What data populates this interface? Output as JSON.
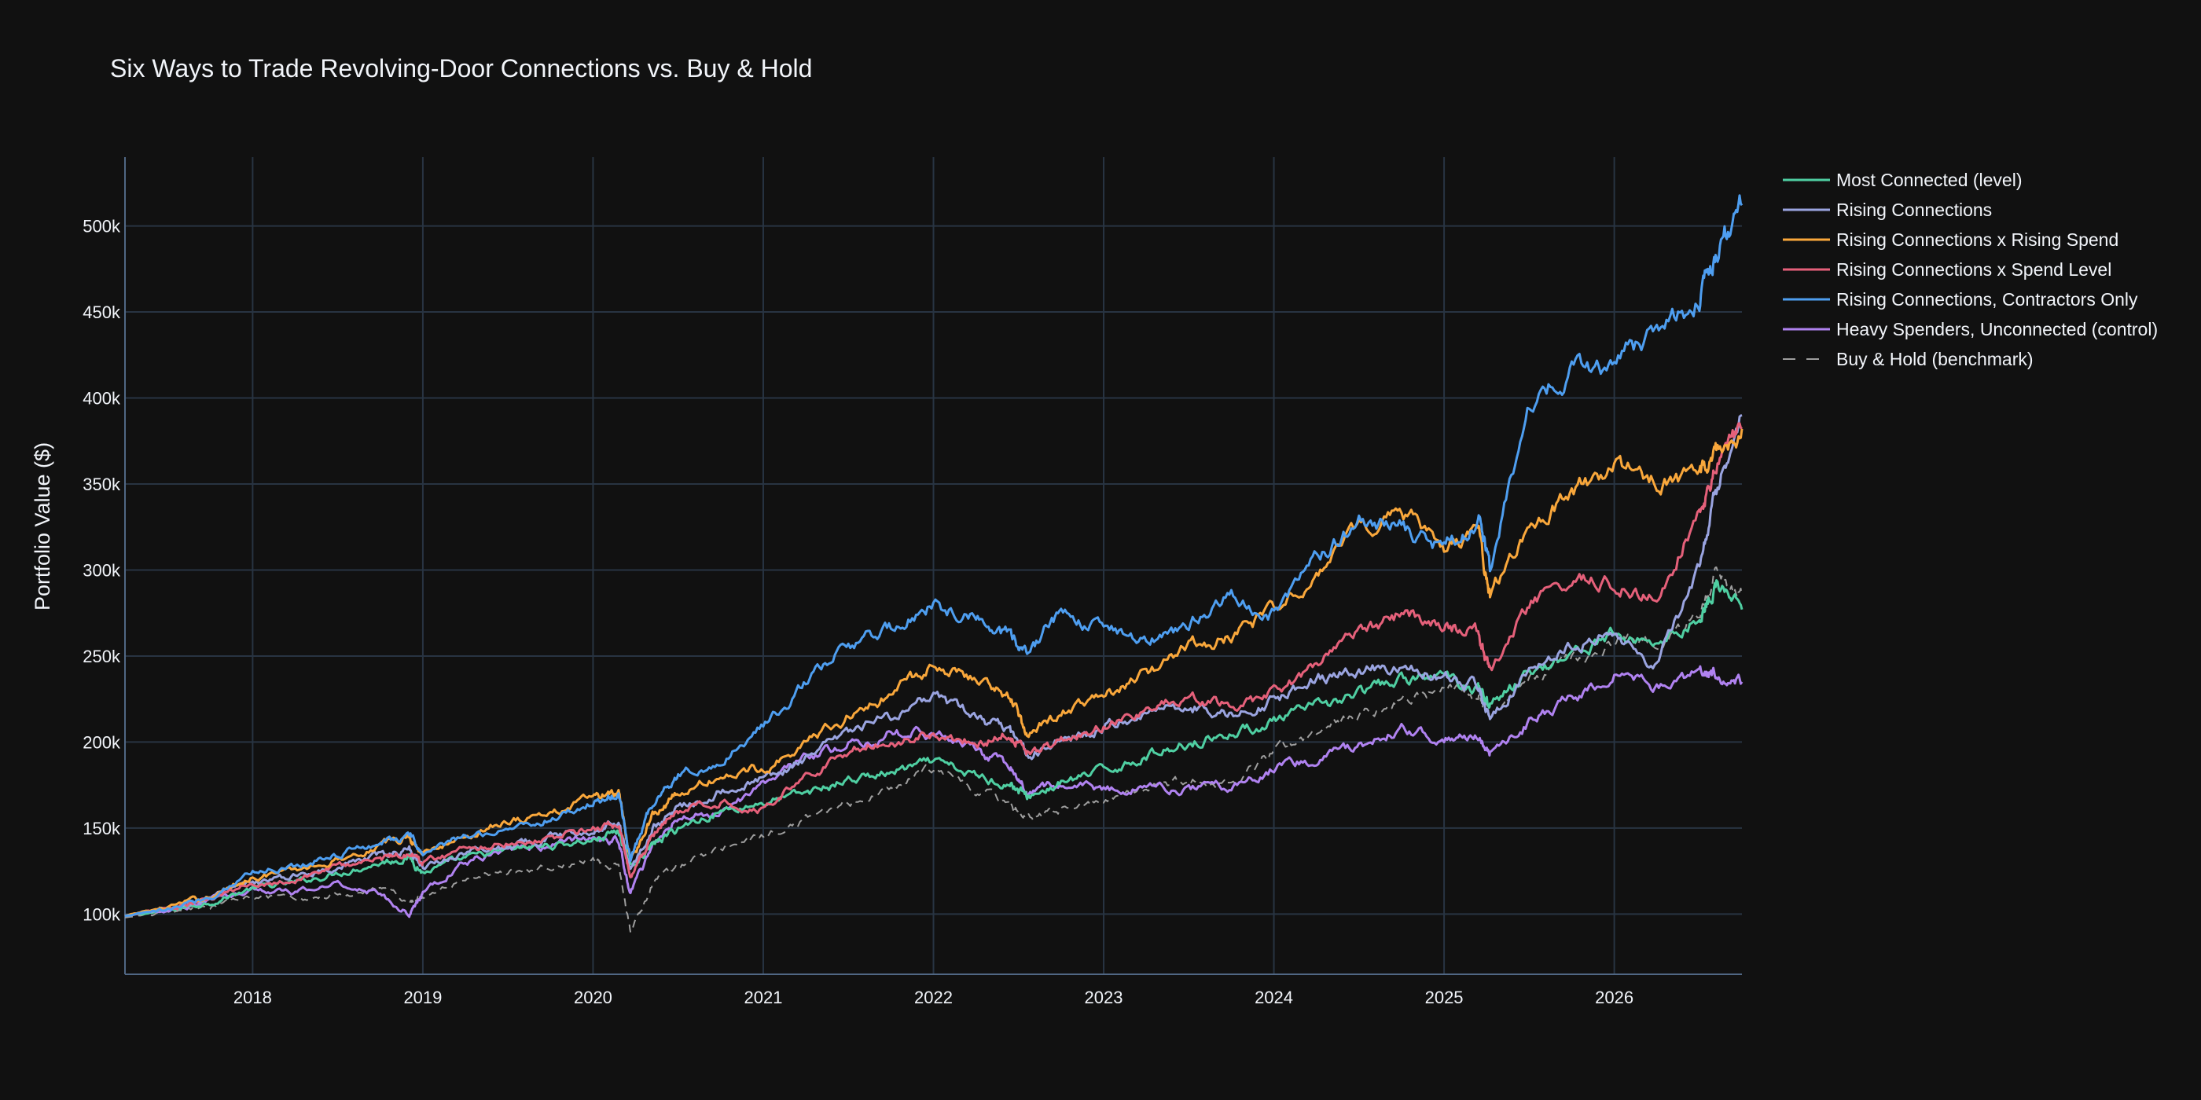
{
  "chart_data": {
    "type": "line",
    "title": "Six Ways to Trade Revolving-Door Connections vs. Buy & Hold",
    "xlabel": "",
    "ylabel": "Portfolio Value ($)",
    "xlim": [
      2017.25,
      2026.75
    ],
    "ylim": [
      65000,
      540000
    ],
    "x_ticks": [
      "2018",
      "2019",
      "2020",
      "2021",
      "2022",
      "2023",
      "2024",
      "2025",
      "2026"
    ],
    "y_ticks": [
      "100k",
      "150k",
      "200k",
      "250k",
      "300k",
      "350k",
      "400k",
      "450k",
      "500k"
    ],
    "grid": true,
    "legend_position": "right",
    "background": "#111111",
    "grid_color": "#283442",
    "series": [
      {
        "name": "Most Connected (level)",
        "color": "#4fcfa2",
        "dash": "solid",
        "x": [
          2017.25,
          2017.5,
          2017.75,
          2018.0,
          2018.25,
          2018.5,
          2018.75,
          2018.92,
          2019.0,
          2019.25,
          2019.5,
          2019.75,
          2020.0,
          2020.15,
          2020.22,
          2020.35,
          2020.5,
          2020.75,
          2021.0,
          2021.25,
          2021.5,
          2021.75,
          2022.0,
          2022.25,
          2022.45,
          2022.55,
          2022.75,
          2023.0,
          2023.25,
          2023.5,
          2023.75,
          2024.0,
          2024.25,
          2024.5,
          2024.75,
          2025.0,
          2025.2,
          2025.27,
          2025.5,
          2025.75,
          2026.0,
          2026.25,
          2026.5,
          2026.6,
          2026.75
        ],
        "values": [
          99000,
          102000,
          107000,
          115000,
          118000,
          124000,
          130000,
          133000,
          124000,
          132000,
          137000,
          140000,
          143000,
          148000,
          128000,
          140000,
          150000,
          160000,
          165000,
          170000,
          178000,
          182000,
          188000,
          180000,
          176000,
          168000,
          176000,
          183000,
          192000,
          200000,
          205000,
          212000,
          220000,
          228000,
          236000,
          238000,
          232000,
          222000,
          240000,
          252000,
          262000,
          258000,
          272000,
          292000,
          277000
        ]
      },
      {
        "name": "Rising Connections",
        "color": "#9aa4e0",
        "dash": "solid",
        "x": [
          2017.25,
          2017.5,
          2017.75,
          2018.0,
          2018.25,
          2018.5,
          2018.75,
          2018.92,
          2019.0,
          2019.25,
          2019.5,
          2019.75,
          2020.0,
          2020.15,
          2020.22,
          2020.35,
          2020.5,
          2020.75,
          2021.0,
          2021.25,
          2021.5,
          2021.75,
          2022.0,
          2022.25,
          2022.45,
          2022.55,
          2022.75,
          2023.0,
          2023.25,
          2023.5,
          2023.75,
          2024.0,
          2024.25,
          2024.5,
          2024.75,
          2025.0,
          2025.2,
          2025.27,
          2025.5,
          2025.75,
          2026.0,
          2026.25,
          2026.5,
          2026.6,
          2026.75
        ],
        "values": [
          99000,
          103000,
          109000,
          118000,
          122000,
          128000,
          134000,
          138000,
          128000,
          136000,
          140000,
          145000,
          150000,
          155000,
          125000,
          150000,
          162000,
          172000,
          178000,
          190000,
          205000,
          215000,
          225000,
          215000,
          205000,
          192000,
          200000,
          208000,
          218000,
          222000,
          215000,
          225000,
          238000,
          240000,
          245000,
          236000,
          232000,
          212000,
          245000,
          255000,
          262000,
          245000,
          300000,
          345000,
          390000
        ]
      },
      {
        "name": "Rising Connections x Rising Spend",
        "color": "#f9a73b",
        "dash": "solid",
        "x": [
          2017.25,
          2017.5,
          2017.75,
          2018.0,
          2018.25,
          2018.5,
          2018.75,
          2018.92,
          2019.0,
          2019.25,
          2019.5,
          2019.75,
          2020.0,
          2020.15,
          2020.22,
          2020.35,
          2020.5,
          2020.75,
          2021.0,
          2021.25,
          2021.5,
          2021.75,
          2022.0,
          2022.25,
          2022.45,
          2022.55,
          2022.75,
          2023.0,
          2023.25,
          2023.5,
          2023.75,
          2024.0,
          2024.25,
          2024.5,
          2024.75,
          2025.0,
          2025.2,
          2025.27,
          2025.5,
          2025.75,
          2026.0,
          2026.25,
          2026.5,
          2026.6,
          2026.75
        ],
        "values": [
          99000,
          104000,
          110000,
          122000,
          125000,
          132000,
          140000,
          145000,
          135000,
          145000,
          155000,
          158000,
          168000,
          170000,
          130000,
          158000,
          170000,
          180000,
          185000,
          200000,
          215000,
          228000,
          245000,
          238000,
          225000,
          205000,
          218000,
          225000,
          240000,
          255000,
          262000,
          275000,
          300000,
          322000,
          338000,
          310000,
          322000,
          285000,
          325000,
          345000,
          360000,
          352000,
          355000,
          368000,
          382000
        ]
      },
      {
        "name": "Rising Connections x Spend Level",
        "color": "#e5607a",
        "dash": "solid",
        "x": [
          2017.25,
          2017.5,
          2017.75,
          2018.0,
          2018.25,
          2018.5,
          2018.75,
          2018.92,
          2019.0,
          2019.25,
          2019.5,
          2019.75,
          2020.0,
          2020.15,
          2020.22,
          2020.35,
          2020.5,
          2020.75,
          2021.0,
          2021.25,
          2021.5,
          2021.75,
          2022.0,
          2022.25,
          2022.45,
          2022.55,
          2022.75,
          2023.0,
          2023.25,
          2023.5,
          2023.75,
          2024.0,
          2024.25,
          2024.5,
          2024.75,
          2025.0,
          2025.2,
          2025.27,
          2025.5,
          2025.75,
          2026.0,
          2026.25,
          2026.5,
          2026.6,
          2026.75
        ],
        "values": [
          99000,
          103000,
          108000,
          118000,
          120000,
          128000,
          132000,
          136000,
          130000,
          138000,
          142000,
          144000,
          150000,
          152000,
          120000,
          145000,
          160000,
          165000,
          162000,
          180000,
          195000,
          200000,
          205000,
          200000,
          205000,
          195000,
          200000,
          210000,
          218000,
          225000,
          220000,
          228000,
          245000,
          262000,
          275000,
          268000,
          262000,
          240000,
          280000,
          295000,
          292000,
          285000,
          335000,
          360000,
          382000
        ]
      },
      {
        "name": "Rising Connections, Contractors Only",
        "color": "#4e9ef0",
        "dash": "solid",
        "x": [
          2017.25,
          2017.5,
          2017.75,
          2018.0,
          2018.25,
          2018.5,
          2018.75,
          2018.92,
          2019.0,
          2019.25,
          2019.5,
          2019.75,
          2020.0,
          2020.15,
          2020.22,
          2020.35,
          2020.5,
          2020.75,
          2021.0,
          2021.25,
          2021.5,
          2021.75,
          2022.0,
          2022.25,
          2022.45,
          2022.55,
          2022.75,
          2023.0,
          2023.25,
          2023.5,
          2023.75,
          2024.0,
          2024.25,
          2024.5,
          2024.75,
          2025.0,
          2025.2,
          2025.27,
          2025.5,
          2025.75,
          2026.0,
          2026.25,
          2026.5,
          2026.6,
          2026.75
        ],
        "values": [
          99000,
          102000,
          110000,
          125000,
          128000,
          135000,
          142000,
          145000,
          135000,
          145000,
          150000,
          155000,
          165000,
          170000,
          132000,
          165000,
          182000,
          188000,
          210000,
          235000,
          255000,
          265000,
          280000,
          272000,
          262000,
          250000,
          275000,
          265000,
          262000,
          268000,
          285000,
          275000,
          305000,
          330000,
          325000,
          312000,
          330000,
          300000,
          395000,
          415000,
          420000,
          440000,
          458000,
          482000,
          512000
        ]
      },
      {
        "name": "Heavy Spenders, Unconnected (control)",
        "color": "#b082f0",
        "dash": "solid",
        "x": [
          2017.25,
          2017.5,
          2017.75,
          2018.0,
          2018.25,
          2018.5,
          2018.75,
          2018.92,
          2019.0,
          2019.25,
          2019.5,
          2019.75,
          2020.0,
          2020.15,
          2020.22,
          2020.35,
          2020.5,
          2020.75,
          2021.0,
          2021.25,
          2021.5,
          2021.75,
          2022.0,
          2022.25,
          2022.45,
          2022.55,
          2022.75,
          2023.0,
          2023.25,
          2023.5,
          2023.75,
          2024.0,
          2024.25,
          2024.5,
          2024.75,
          2025.0,
          2025.2,
          2025.27,
          2025.5,
          2025.75,
          2026.0,
          2026.25,
          2026.5,
          2026.6,
          2026.75
        ],
        "values": [
          99000,
          102000,
          108000,
          115000,
          112000,
          118000,
          112000,
          100000,
          112000,
          130000,
          138000,
          140000,
          145000,
          142000,
          112000,
          140000,
          155000,
          160000,
          175000,
          190000,
          200000,
          205000,
          205000,
          195000,
          185000,
          170000,
          175000,
          172000,
          175000,
          172000,
          175000,
          185000,
          190000,
          198000,
          208000,
          202000,
          205000,
          195000,
          212000,
          225000,
          240000,
          232000,
          240000,
          240000,
          235000
        ]
      },
      {
        "name": "Buy & Hold (benchmark)",
        "color": "#9e9e9e",
        "dash": "dash",
        "x": [
          2017.25,
          2017.5,
          2017.75,
          2018.0,
          2018.25,
          2018.5,
          2018.75,
          2018.92,
          2019.0,
          2019.25,
          2019.5,
          2019.75,
          2020.0,
          2020.15,
          2020.22,
          2020.35,
          2020.5,
          2020.75,
          2021.0,
          2021.25,
          2021.5,
          2021.75,
          2022.0,
          2022.25,
          2022.45,
          2022.55,
          2022.75,
          2023.0,
          2023.25,
          2023.5,
          2023.75,
          2024.0,
          2024.25,
          2024.5,
          2024.75,
          2025.0,
          2025.2,
          2025.27,
          2025.5,
          2025.75,
          2026.0,
          2026.25,
          2026.5,
          2026.6,
          2026.75
        ],
        "values": [
          98000,
          101000,
          104000,
          110000,
          108000,
          112000,
          115000,
          108000,
          110000,
          120000,
          125000,
          128000,
          132000,
          128000,
          90000,
          118000,
          128000,
          138000,
          145000,
          155000,
          165000,
          172000,
          185000,
          172000,
          165000,
          155000,
          160000,
          165000,
          172000,
          178000,
          175000,
          195000,
          205000,
          215000,
          225000,
          230000,
          228000,
          215000,
          238000,
          248000,
          258000,
          260000,
          275000,
          298000,
          285000
        ]
      }
    ]
  }
}
